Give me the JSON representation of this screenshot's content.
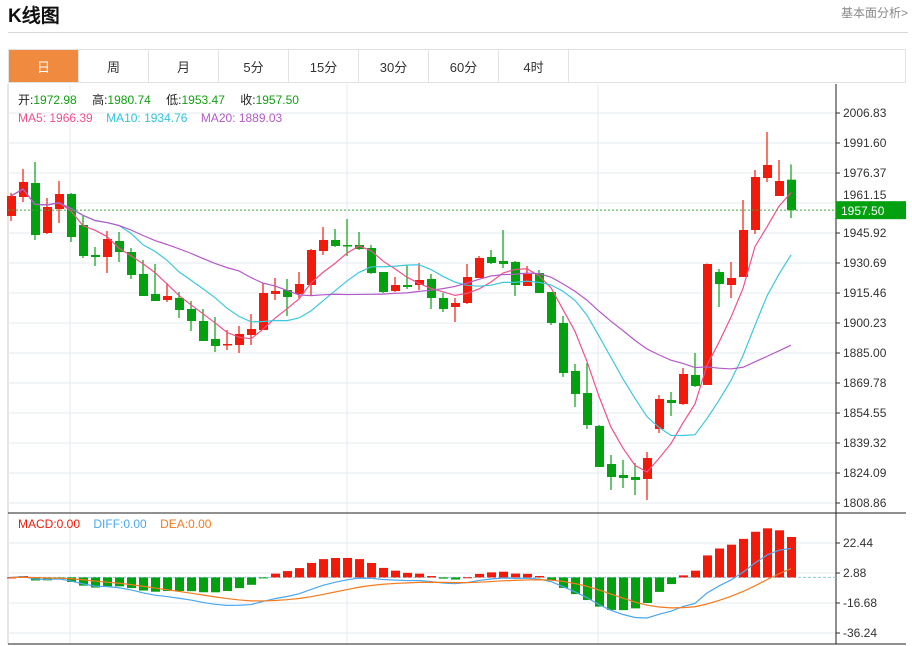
{
  "header": {
    "title": "K线图",
    "link": "基本面分析>"
  },
  "tabs": [
    "日",
    "周",
    "月",
    "5分",
    "15分",
    "30分",
    "60分",
    "4时"
  ],
  "active_tab": 0,
  "ohlc_legend": {
    "open_label": "开:",
    "open": "1972.98",
    "high_label": "高:",
    "high": "1980.74",
    "low_label": "低:",
    "low": "1953.47",
    "close_label": "收:",
    "close": "1957.50"
  },
  "ma_legend": {
    "ma5": "MA5: 1966.39",
    "ma10": "MA10: 1934.76",
    "ma20": "MA20: 1889.03"
  },
  "macd_legend": {
    "macd": "MACD:0.00",
    "diff": "DIFF:0.00",
    "dea": "DEA:0.00"
  },
  "colors": {
    "up": "#f21a0a",
    "down": "#03a10f",
    "ma5": "#f0508c",
    "ma10": "#3cc8dc",
    "ma20": "#b45ac8",
    "diff": "#4aa8f0",
    "dea": "#f57a1e",
    "tab_active": "#f08a3e"
  },
  "chart_data": {
    "type": "candlestick",
    "price_ticks": [
      "2006.83",
      "1991.60",
      "1976.37",
      "1961.15",
      "1945.92",
      "1930.69",
      "1915.46",
      "1900.23",
      "1885.00",
      "1869.78",
      "1854.55",
      "1839.32",
      "1824.09",
      "1808.86"
    ],
    "price_range": [
      1808.86,
      2006.83
    ],
    "current_price": "1957.50",
    "macd_ticks": [
      "22.44",
      "2.88",
      "-16.68",
      "-36.24"
    ],
    "macd_range": [
      -36.24,
      22.44
    ],
    "candles_ohlc": [
      [
        1954.55,
        1966.22,
        1952.01,
        1964.7
      ],
      [
        1964.19,
        1978.41,
        1961.65,
        1971.81
      ],
      [
        1971.3,
        1981.96,
        1942.37,
        1944.9
      ],
      [
        1945.92,
        1963.69,
        1945.41,
        1959.12
      ],
      [
        1958.1,
        1972.31,
        1951.0,
        1965.71
      ],
      [
        1965.71,
        1966.22,
        1941.35,
        1943.89
      ],
      [
        1949.98,
        1954.55,
        1933.23,
        1934.24
      ],
      [
        1934.75,
        1938.81,
        1929.17,
        1933.74
      ],
      [
        1933.74,
        1946.93,
        1925.62,
        1942.87
      ],
      [
        1941.86,
        1946.42,
        1931.2,
        1936.27
      ],
      [
        1936.27,
        1938.3,
        1922.57,
        1924.6
      ],
      [
        1925.11,
        1932.21,
        1913.94,
        1913.94
      ],
      [
        1914.96,
        1930.18,
        1911.4,
        1911.4
      ],
      [
        1911.91,
        1920.54,
        1910.89,
        1913.94
      ],
      [
        1912.93,
        1915.97,
        1902.77,
        1906.83
      ],
      [
        1907.34,
        1911.4,
        1896.17,
        1901.25
      ],
      [
        1901.25,
        1907.34,
        1891.1,
        1891.1
      ],
      [
        1892.11,
        1903.28,
        1885.51,
        1888.56
      ],
      [
        1889.07,
        1896.68,
        1886.52,
        1889.58
      ],
      [
        1889.07,
        1898.71,
        1885.0,
        1894.65
      ],
      [
        1894.14,
        1904.8,
        1889.07,
        1897.19
      ],
      [
        1896.68,
        1920.54,
        1896.68,
        1915.46
      ],
      [
        1914.96,
        1923.08,
        1911.91,
        1916.48
      ],
      [
        1916.98,
        1922.57,
        1903.79,
        1913.44
      ],
      [
        1914.96,
        1926.12,
        1912.93,
        1920.03
      ],
      [
        1919.52,
        1937.8,
        1914.45,
        1937.29
      ],
      [
        1936.78,
        1948.96,
        1934.75,
        1942.37
      ],
      [
        1942.37,
        1947.95,
        1938.81,
        1939.32
      ],
      [
        1939.83,
        1953.03,
        1934.24,
        1939.6
      ],
      [
        1939.83,
        1946.42,
        1937.29,
        1937.8
      ],
      [
        1938.3,
        1939.8,
        1925.11,
        1925.62
      ],
      [
        1926.12,
        1926.12,
        1915.46,
        1915.97
      ],
      [
        1916.48,
        1923.58,
        1915.97,
        1919.52
      ],
      [
        1919.52,
        1929.68,
        1917.49,
        1918.51
      ],
      [
        1919.52,
        1930.69,
        1916.98,
        1922.06
      ],
      [
        1922.57,
        1925.11,
        1907.34,
        1912.93
      ],
      [
        1912.93,
        1915.46,
        1905.82,
        1907.34
      ],
      [
        1908.36,
        1912.93,
        1900.74,
        1910.38
      ],
      [
        1910.38,
        1930.18,
        1909.88,
        1923.58
      ],
      [
        1923.08,
        1934.24,
        1923.08,
        1933.23
      ],
      [
        1933.74,
        1937.29,
        1930.18,
        1930.69
      ],
      [
        1931.71,
        1947.44,
        1928.15,
        1930.18
      ],
      [
        1931.2,
        1931.71,
        1913.94,
        1919.52
      ],
      [
        1919.01,
        1929.17,
        1919.01,
        1925.11
      ],
      [
        1925.62,
        1927.14,
        1915.46,
        1915.46
      ],
      [
        1915.97,
        1915.97,
        1899.22,
        1900.24
      ],
      [
        1900.24,
        1903.79,
        1872.83,
        1874.86
      ],
      [
        1875.87,
        1879.42,
        1857.6,
        1864.2
      ],
      [
        1864.71,
        1879.93,
        1846.43,
        1848.46
      ],
      [
        1847.95,
        1848.46,
        1827.14,
        1827.14
      ],
      [
        1828.66,
        1833.23,
        1815.47,
        1822.06
      ],
      [
        1823.07,
        1830.7,
        1816.48,
        1821.55
      ],
      [
        1822.06,
        1829.18,
        1812.93,
        1820.54
      ],
      [
        1821.05,
        1834.76,
        1810.4,
        1831.71
      ],
      [
        1846.43,
        1863.69,
        1844.4,
        1861.66
      ],
      [
        1861.15,
        1865.22,
        1853.03,
        1859.63
      ],
      [
        1859.12,
        1877.4,
        1858.61,
        1874.35
      ],
      [
        1873.85,
        1885.0,
        1867.75,
        1868.26
      ],
      [
        1868.77,
        1930.4,
        1868.77,
        1930.18
      ],
      [
        1926.12,
        1927.65,
        1908.36,
        1920.03
      ],
      [
        1919.52,
        1931.2,
        1912.93,
        1923.08
      ],
      [
        1923.58,
        1962.67,
        1923.58,
        1947.44
      ],
      [
        1947.44,
        1977.9,
        1945.41,
        1974.34
      ],
      [
        1973.83,
        1997.19,
        1971.81,
        1980.44
      ],
      [
        1964.7,
        1982.97,
        1964.7,
        1972.31
      ],
      [
        1972.98,
        1980.74,
        1953.47,
        1957.5
      ]
    ]
  }
}
